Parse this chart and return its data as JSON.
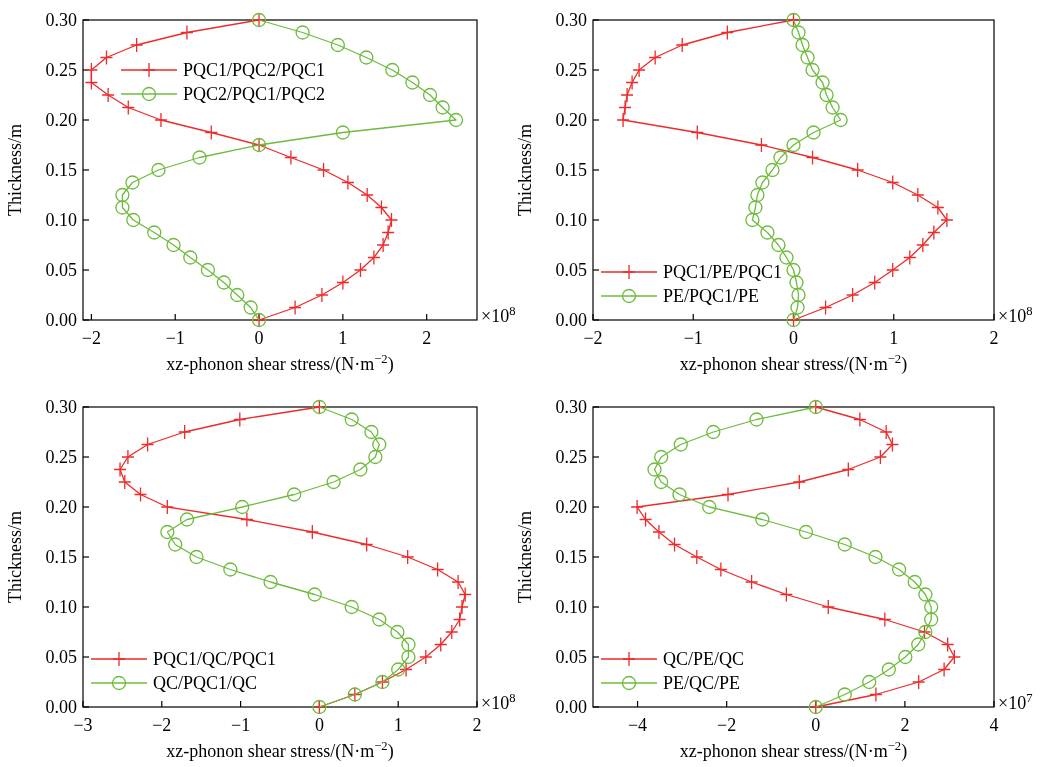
{
  "chart_data": [
    {
      "type": "line",
      "xlabel": "xz-phonon shear stress/(N·m$^{−2}$)",
      "ylabel": "Thickness/m",
      "annotations": [
        "×10$^{8}$"
      ],
      "legend": "top left",
      "grid": false,
      "xlim": [
        -2.1,
        2.6
      ],
      "xticks": [
        {
          "value": -2,
          "label": "−2"
        },
        {
          "value": -1,
          "label": "−1"
        },
        0,
        1,
        2
      ],
      "ylim": [
        0,
        0.3
      ],
      "yticks": [
        {
          "value": 0,
          "label": "0.00"
        },
        {
          "value": 0.05,
          "label": "0.05"
        },
        {
          "value": 0.1,
          "label": "0.10"
        },
        {
          "value": 0.15,
          "label": "0.15"
        },
        {
          "value": 0.2,
          "label": "0.20"
        },
        {
          "value": 0.25,
          "label": "0.25"
        },
        {
          "value": 0.3,
          "label": "0.30"
        }
      ],
      "series": [
        {
          "name": "PQC1/PQC2/PQC1",
          "color": "#ee2a2a",
          "marker": "cross",
          "x": [
            0,
            0.43,
            0.75,
            1.0,
            1.21,
            1.37,
            1.48,
            1.54,
            1.58,
            1.46,
            1.29,
            1.06,
            0.77,
            0.38,
            0,
            -0.57,
            -1.17,
            -1.56,
            -1.8,
            -2.0,
            -2.0,
            -1.82,
            -1.46,
            -0.86,
            0
          ],
          "values": [
            0,
            0.0125,
            0.025,
            0.0375,
            0.05,
            0.0625,
            0.075,
            0.0875,
            0.1,
            0.1125,
            0.125,
            0.1375,
            0.15,
            0.1625,
            0.175,
            0.1875,
            0.2,
            0.2125,
            0.225,
            0.2375,
            0.25,
            0.2625,
            0.275,
            0.2875,
            0.3
          ]
        },
        {
          "name": "PQC2/PQC1/PQC2",
          "color": "#6dbb3c",
          "marker": "circle",
          "x": [
            0,
            -0.1,
            -0.26,
            -0.42,
            -0.61,
            -0.82,
            -1.02,
            -1.25,
            -1.5,
            -1.63,
            -1.63,
            -1.51,
            -1.2,
            -0.71,
            0,
            1.0,
            2.35,
            2.19,
            2.04,
            1.83,
            1.59,
            1.28,
            0.94,
            0.52,
            0
          ],
          "values": [
            0,
            0.0125,
            0.025,
            0.0375,
            0.05,
            0.0625,
            0.075,
            0.0875,
            0.1,
            0.1125,
            0.125,
            0.1375,
            0.15,
            0.1625,
            0.175,
            0.1875,
            0.2,
            0.2125,
            0.225,
            0.2375,
            0.25,
            0.2625,
            0.275,
            0.2875,
            0.3
          ]
        }
      ]
    },
    {
      "type": "line",
      "xlabel": "xz-phonon shear stress/(N·m$^{−2}$)",
      "ylabel": "Thickness/m",
      "annotations": [
        "×10$^{8}$"
      ],
      "legend": "bottom left",
      "grid": false,
      "xlim": [
        -2,
        2
      ],
      "xticks": [
        {
          "value": -2,
          "label": "−2"
        },
        {
          "value": -1,
          "label": "−1"
        },
        0,
        1,
        2
      ],
      "ylim": [
        0,
        0.3
      ],
      "yticks": [
        {
          "value": 0,
          "label": "0.00"
        },
        {
          "value": 0.05,
          "label": "0.05"
        },
        {
          "value": 0.1,
          "label": "0.10"
        },
        {
          "value": 0.15,
          "label": "0.15"
        },
        {
          "value": 0.2,
          "label": "0.20"
        },
        {
          "value": 0.25,
          "label": "0.25"
        },
        {
          "value": 0.3,
          "label": "0.30"
        }
      ],
      "series": [
        {
          "name": "PQC1/PE/PQC1",
          "color": "#ee2a2a",
          "marker": "cross",
          "x": [
            0,
            0.32,
            0.59,
            0.81,
            0.99,
            1.16,
            1.29,
            1.4,
            1.53,
            1.44,
            1.24,
            0.99,
            0.64,
            0.19,
            -0.32,
            -0.96,
            -1.7,
            -1.68,
            -1.66,
            -1.61,
            -1.54,
            -1.38,
            -1.11,
            -0.66,
            0
          ],
          "values": [
            0,
            0.0125,
            0.025,
            0.0375,
            0.05,
            0.0625,
            0.075,
            0.0875,
            0.1,
            0.1125,
            0.125,
            0.1375,
            0.15,
            0.1625,
            0.175,
            0.1875,
            0.2,
            0.2125,
            0.225,
            0.2375,
            0.25,
            0.2625,
            0.275,
            0.2875,
            0.3
          ]
        },
        {
          "name": "PE/PQC1/PE",
          "color": "#6dbb3c",
          "marker": "circle",
          "x": [
            0,
            0.04,
            0.05,
            0.03,
            0,
            -0.07,
            -0.15,
            -0.26,
            -0.41,
            -0.38,
            -0.36,
            -0.31,
            -0.21,
            -0.13,
            0,
            0.2,
            0.47,
            0.39,
            0.33,
            0.29,
            0.19,
            0.14,
            0.09,
            0.05,
            0
          ],
          "values": [
            0,
            0.0125,
            0.025,
            0.0375,
            0.05,
            0.0625,
            0.075,
            0.0875,
            0.1,
            0.1125,
            0.125,
            0.1375,
            0.15,
            0.1625,
            0.175,
            0.1875,
            0.2,
            0.2125,
            0.225,
            0.2375,
            0.25,
            0.2625,
            0.275,
            0.2875,
            0.3
          ]
        }
      ]
    },
    {
      "type": "line",
      "xlabel": "xz-phonon shear stress/(N·m$^{−2}$)",
      "ylabel": "Thickness/m",
      "annotations": [
        "×10$^{8}$"
      ],
      "legend": "bottom left",
      "grid": false,
      "xlim": [
        -3,
        2
      ],
      "xticks": [
        {
          "value": -3,
          "label": "−3"
        },
        {
          "value": -2,
          "label": "−2"
        },
        {
          "value": -1,
          "label": "−1"
        },
        0,
        1,
        2
      ],
      "ylim": [
        0,
        0.3
      ],
      "yticks": [
        {
          "value": 0,
          "label": "0.00"
        },
        {
          "value": 0.05,
          "label": "0.05"
        },
        {
          "value": 0.1,
          "label": "0.10"
        },
        {
          "value": 0.15,
          "label": "0.15"
        },
        {
          "value": 0.2,
          "label": "0.20"
        },
        {
          "value": 0.25,
          "label": "0.25"
        },
        {
          "value": 0.3,
          "label": "0.30"
        }
      ],
      "series": [
        {
          "name": "PQC1/QC/PQC1",
          "color": "#ee2a2a",
          "marker": "cross",
          "x": [
            0,
            0.45,
            0.8,
            1.1,
            1.35,
            1.54,
            1.68,
            1.78,
            1.81,
            1.85,
            1.76,
            1.5,
            1.12,
            0.6,
            -0.09,
            -0.92,
            -1.93,
            -2.27,
            -2.47,
            -2.53,
            -2.43,
            -2.18,
            -1.71,
            -1.01,
            0
          ],
          "values": [
            0,
            0.0125,
            0.025,
            0.0375,
            0.05,
            0.0625,
            0.075,
            0.0875,
            0.1,
            0.1125,
            0.125,
            0.1375,
            0.15,
            0.1625,
            0.175,
            0.1875,
            0.2,
            0.2125,
            0.225,
            0.2375,
            0.25,
            0.2625,
            0.275,
            0.2875,
            0.3
          ]
        },
        {
          "name": "QC/PQC1/QC",
          "color": "#6dbb3c",
          "marker": "circle",
          "x": [
            0,
            0.45,
            0.8,
            1.0,
            1.13,
            1.13,
            0.99,
            0.76,
            0.41,
            -0.06,
            -0.62,
            -1.13,
            -1.56,
            -1.83,
            -1.93,
            -1.68,
            -0.98,
            -0.32,
            0.18,
            0.52,
            0.71,
            0.76,
            0.66,
            0.41,
            0
          ],
          "values": [
            0,
            0.0125,
            0.025,
            0.0375,
            0.05,
            0.0625,
            0.075,
            0.0875,
            0.1,
            0.1125,
            0.125,
            0.1375,
            0.15,
            0.1625,
            0.175,
            0.1875,
            0.2,
            0.2125,
            0.225,
            0.2375,
            0.25,
            0.2625,
            0.275,
            0.2875,
            0.3
          ]
        }
      ]
    },
    {
      "type": "line",
      "xlabel": "xz-phonon shear stress/(N·m$^{−2}$)",
      "ylabel": "Thickness/m",
      "annotations": [
        "×10$^{7}$"
      ],
      "legend": "bottom left",
      "grid": false,
      "xlim": [
        -5,
        4
      ],
      "xticks": [
        {
          "value": -4,
          "label": "−4"
        },
        {
          "value": -2,
          "label": "−2"
        },
        0,
        2,
        4
      ],
      "ylim": [
        0,
        0.3
      ],
      "yticks": [
        {
          "value": 0,
          "label": "0.00"
        },
        {
          "value": 0.05,
          "label": "0.05"
        },
        {
          "value": 0.1,
          "label": "0.10"
        },
        {
          "value": 0.15,
          "label": "0.15"
        },
        {
          "value": 0.2,
          "label": "0.20"
        },
        {
          "value": 0.25,
          "label": "0.25"
        },
        {
          "value": 0.3,
          "label": "0.30"
        }
      ],
      "series": [
        {
          "name": "QC/PE/QC",
          "color": "#ee2a2a",
          "marker": "cross",
          "x": [
            0,
            1.35,
            2.31,
            2.88,
            3.11,
            2.96,
            2.44,
            1.55,
            0.28,
            -0.66,
            -1.44,
            -2.13,
            -2.67,
            -3.17,
            -3.52,
            -3.82,
            -4.01,
            -1.97,
            -0.37,
            0.73,
            1.45,
            1.72,
            1.58,
            0.99,
            0
          ],
          "values": [
            0,
            0.0125,
            0.025,
            0.0375,
            0.05,
            0.0625,
            0.075,
            0.0875,
            0.1,
            0.1125,
            0.125,
            0.1375,
            0.15,
            0.1625,
            0.175,
            0.1875,
            0.2,
            0.2125,
            0.225,
            0.2375,
            0.25,
            0.2625,
            0.275,
            0.2875,
            0.3
          ]
        },
        {
          "name": "PE/QC/PE",
          "color": "#6dbb3c",
          "marker": "circle",
          "x": [
            0,
            0.65,
            1.2,
            1.64,
            2.01,
            2.3,
            2.46,
            2.59,
            2.59,
            2.46,
            2.22,
            1.87,
            1.34,
            0.65,
            -0.22,
            -1.2,
            -2.39,
            -3.06,
            -3.47,
            -3.62,
            -3.47,
            -3.03,
            -2.3,
            -1.33,
            0
          ],
          "values": [
            0,
            0.0125,
            0.025,
            0.0375,
            0.05,
            0.0625,
            0.075,
            0.0875,
            0.1,
            0.1125,
            0.125,
            0.1375,
            0.15,
            0.1625,
            0.175,
            0.1875,
            0.2,
            0.2125,
            0.225,
            0.2375,
            0.25,
            0.2625,
            0.275,
            0.2875,
            0.3
          ]
        }
      ]
    }
  ]
}
